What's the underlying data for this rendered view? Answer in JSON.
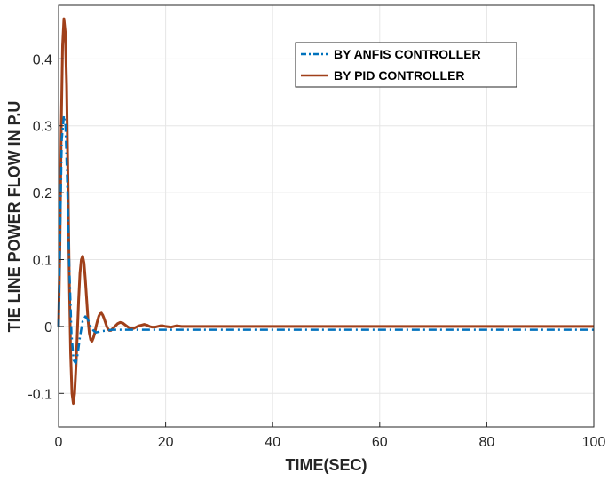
{
  "chart_data": {
    "type": "line",
    "title": "",
    "xlabel": "TIME(SEC)",
    "ylabel": "TIE LINE POWER FLOW IN P.U",
    "xlim": [
      0,
      100
    ],
    "ylim": [
      -0.15,
      0.48
    ],
    "x_ticks": [
      0,
      20,
      40,
      60,
      80,
      100
    ],
    "y_ticks": [
      -0.1,
      0,
      0.1,
      0.2,
      0.3,
      0.4
    ],
    "x_tick_labels": [
      "0",
      "20",
      "40",
      "60",
      "80",
      "100"
    ],
    "y_tick_labels": [
      "-0.1",
      "0",
      "0.1",
      "0.2",
      "0.3",
      "0.4"
    ],
    "grid": true,
    "legend_position": "top-right",
    "series": [
      {
        "name": "BY ANFIS CONTROLLER",
        "color": "#0072BD",
        "style": "dash-dot",
        "x": [
          0,
          0.3,
          0.6,
          1.0,
          1.3,
          1.6,
          2.0,
          2.4,
          2.8,
          3.2,
          3.6,
          4.0,
          4.5,
          5.0,
          5.5,
          6.0,
          6.5,
          7.0,
          7.5,
          8.0,
          9.0,
          10,
          12,
          15,
          20,
          30,
          50,
          70,
          100
        ],
        "y": [
          0,
          0.15,
          0.28,
          0.315,
          0.3,
          0.22,
          0.09,
          -0.01,
          -0.05,
          -0.055,
          -0.04,
          -0.015,
          0.008,
          0.015,
          0.01,
          0.0,
          -0.006,
          -0.009,
          -0.008,
          -0.007,
          -0.006,
          -0.005,
          -0.005,
          -0.005,
          -0.005,
          -0.005,
          -0.005,
          -0.005,
          -0.005
        ]
      },
      {
        "name": "BY PID CONTROLLER",
        "color": "#A0401A",
        "style": "solid",
        "x": [
          0,
          0.25,
          0.5,
          0.75,
          1.0,
          1.25,
          1.5,
          1.75,
          2.0,
          2.25,
          2.5,
          2.75,
          3.0,
          3.25,
          3.5,
          3.75,
          4.0,
          4.25,
          4.5,
          4.75,
          5.0,
          5.25,
          5.5,
          5.75,
          6.0,
          6.25,
          6.5,
          6.75,
          7.0,
          7.25,
          7.5,
          7.75,
          8.0,
          8.25,
          8.5,
          8.75,
          9.0,
          9.25,
          9.5,
          9.75,
          10.0,
          10.5,
          11.0,
          11.5,
          12.0,
          12.5,
          13.0,
          13.5,
          14.0,
          14.5,
          15.0,
          15.5,
          16.0,
          16.5,
          17.0,
          17.5,
          18.0,
          18.5,
          19.0,
          19.5,
          20.0,
          21,
          22,
          23,
          24,
          25,
          26,
          27,
          28,
          29,
          30,
          35,
          40,
          50,
          60,
          70,
          80,
          90,
          100
        ],
        "y": [
          0,
          0.12,
          0.3,
          0.42,
          0.46,
          0.44,
          0.36,
          0.22,
          0.07,
          -0.04,
          -0.1,
          -0.115,
          -0.1,
          -0.06,
          -0.01,
          0.04,
          0.08,
          0.1,
          0.105,
          0.095,
          0.07,
          0.04,
          0.01,
          -0.01,
          -0.02,
          -0.022,
          -0.017,
          -0.01,
          0.0,
          0.008,
          0.015,
          0.019,
          0.02,
          0.017,
          0.012,
          0.006,
          0.0,
          -0.004,
          -0.006,
          -0.006,
          -0.004,
          0.0,
          0.004,
          0.006,
          0.005,
          0.002,
          -0.001,
          -0.003,
          -0.003,
          -0.001,
          0.001,
          0.002,
          0.003,
          0.002,
          0.0,
          -0.001,
          -0.001,
          0.0,
          0.001,
          0.001,
          0.0,
          -0.001,
          0.001,
          0.0,
          0.0,
          0.0,
          0.0,
          0.0,
          0.0,
          0.0,
          0.0,
          0.0,
          0.0,
          0.0,
          0.0,
          0.0,
          0.0,
          0.0,
          0.0
        ]
      }
    ]
  }
}
